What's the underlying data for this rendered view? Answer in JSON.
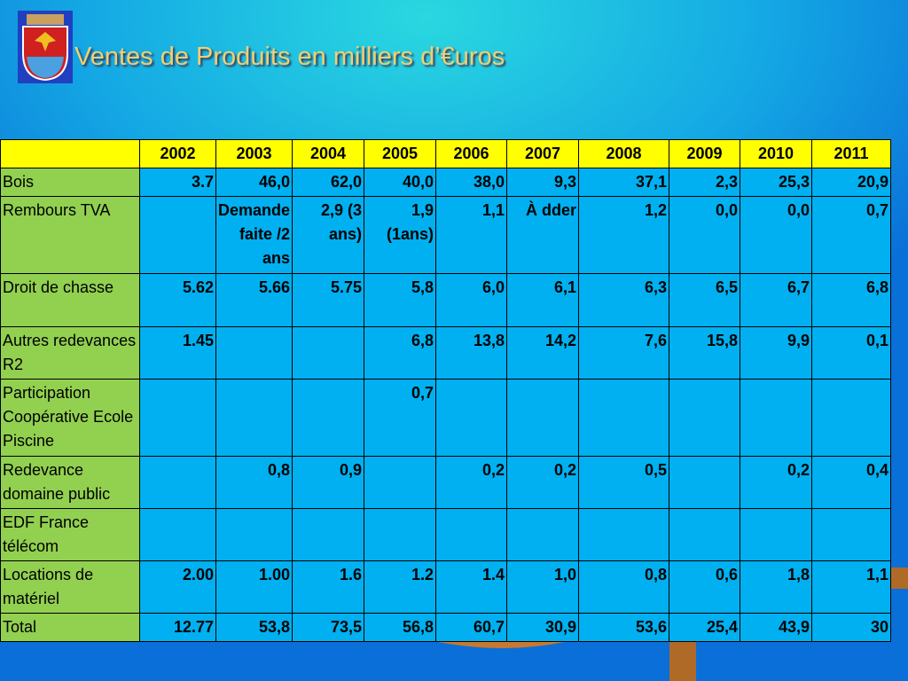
{
  "header": {
    "title": "Ventes de Produits en milliers d’€uros"
  },
  "table": {
    "columns": [
      null,
      "2002",
      "2003",
      "2004",
      "2005",
      "2006",
      "2007",
      "2008",
      "2009",
      "2010",
      "2011"
    ],
    "rows": [
      [
        "Bois",
        "3.7",
        "46,0",
        "62,0",
        "40,0",
        "38,0",
        "9,3",
        "37,1",
        "2,3",
        "25,3",
        "20,9"
      ],
      [
        "Rembours TVA",
        null,
        "Demande faite /2 ans",
        "2,9 (3 ans)",
        "1,9 (1ans)",
        "1,1",
        "À dder",
        "1,2",
        "0,0",
        "0,0",
        "0,7"
      ],
      [
        "Droit de chasse",
        "5.62",
        "5.66",
        "5.75",
        "5,8",
        "6,0",
        "6,1",
        "6,3",
        "6,5",
        "6,7",
        "6,8"
      ],
      [
        "Autres redevances R2",
        "1.45",
        null,
        null,
        "6,8",
        "13,8",
        "14,2",
        "7,6",
        "15,8",
        "9,9",
        "0,1"
      ],
      [
        "Participation Coopérative Ecole Piscine",
        null,
        null,
        null,
        "0,7",
        null,
        null,
        null,
        null,
        null,
        null
      ],
      [
        "Redevance domaine public",
        null,
        "0,8",
        "0,9",
        null,
        "0,2",
        "0,2",
        "0,5",
        null,
        "0,2",
        "0,4"
      ],
      [
        "EDF France télécom",
        null,
        null,
        null,
        null,
        null,
        null,
        null,
        null,
        null,
        null
      ],
      [
        "Locations de matériel",
        "2.00",
        "1.00",
        "1.6",
        "1.2",
        "1.4",
        "1,0",
        "0,8",
        "0,6",
        "1,8",
        "1,1"
      ],
      [
        "Total",
        "12.77",
        "53,8",
        "73,5",
        "56,8",
        "60,7",
        "30,9",
        "53,6",
        "25,4",
        "43,9",
        "30"
      ]
    ]
  }
}
